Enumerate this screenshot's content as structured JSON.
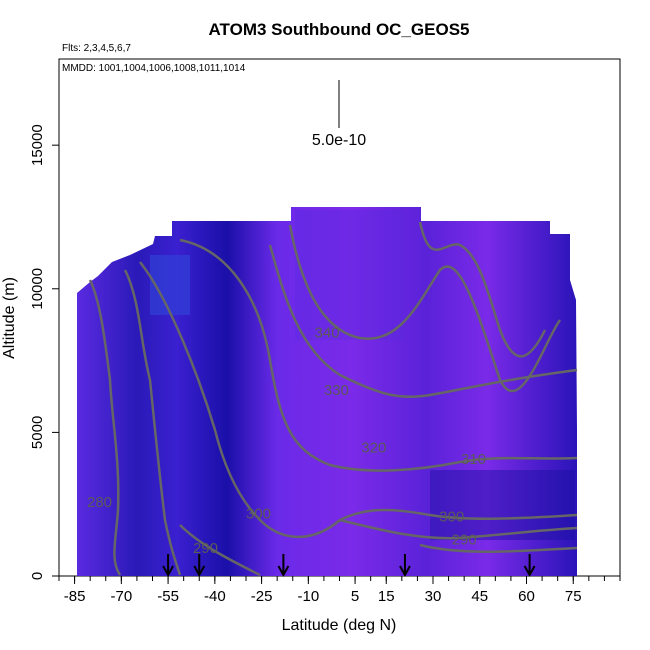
{
  "chart_data": {
    "type": "heatmap",
    "title": "ATOM3 Southbound OC_GEOS5",
    "flights_note": "Flts: 2,3,4,5,6,7",
    "dates_note": "MMDD: 1001,1004,1006,1008,1011,1014",
    "xlabel": "Latitude (deg N)",
    "ylabel": "Altitude (m)",
    "xlim": [
      -90,
      90
    ],
    "ylim": [
      0,
      18000
    ],
    "x_ticks": [
      -85,
      -70,
      -55,
      -40,
      -25,
      -10,
      5,
      15,
      30,
      45,
      60,
      75
    ],
    "y_ticks": [
      0,
      5000,
      10000,
      15000
    ],
    "scale_bar_label": "5.0e-10",
    "colors": {
      "field_dark": "#1a0fa8",
      "field_mid": "#4a2ad8",
      "field_light": "#8a2be2",
      "contour": "#666666"
    },
    "contour_levels": [
      {
        "label": "280",
        "x": -77,
        "y": 2400
      },
      {
        "label": "290",
        "x": -43,
        "y": 800
      },
      {
        "label": "300",
        "x": -26,
        "y": 2000
      },
      {
        "label": "320",
        "x": 11,
        "y": 4300
      },
      {
        "label": "330",
        "x": -1,
        "y": 6300
      },
      {
        "label": "340",
        "x": -4,
        "y": 8300
      },
      {
        "label": "310",
        "x": 43,
        "y": 3900
      },
      {
        "label": "300",
        "x": 36,
        "y": 1900
      },
      {
        "label": "290",
        "x": 40,
        "y": 1100
      }
    ],
    "flight_markers_lat": [
      -55,
      -45,
      -18,
      21,
      61
    ]
  }
}
